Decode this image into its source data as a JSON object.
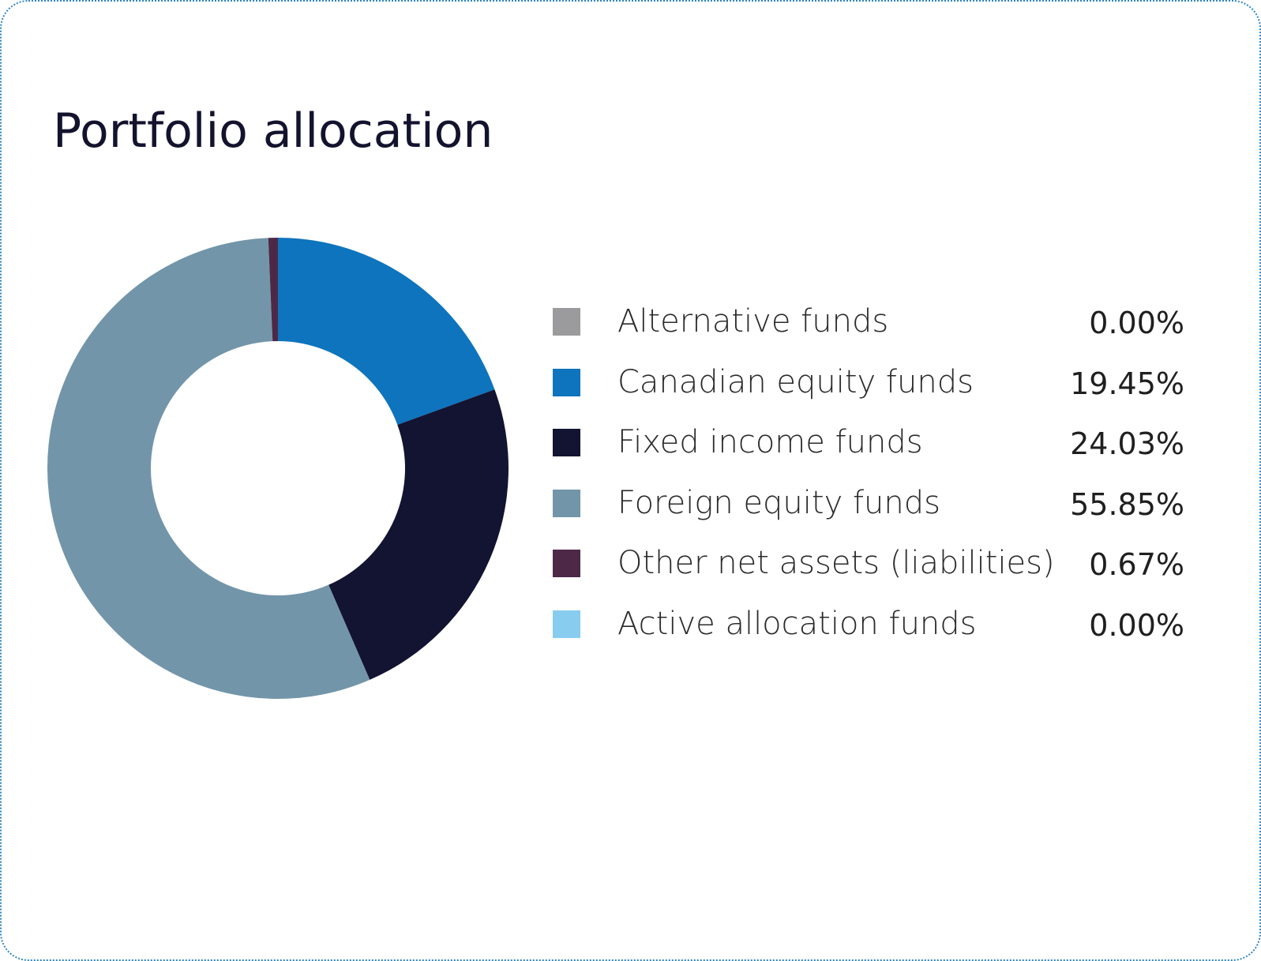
{
  "title": "Portfolio allocation",
  "chart_data": {
    "type": "pie",
    "variant": "donut",
    "title": "Portfolio allocation",
    "categories": [
      "Alternative funds",
      "Canadian equity funds",
      "Fixed income funds",
      "Foreign equity funds",
      "Other net assets (liabilities)",
      "Active allocation funds"
    ],
    "values": [
      0.0,
      19.45,
      24.03,
      55.85,
      0.67,
      0.0
    ],
    "value_labels": [
      "0.00%",
      "19.45%",
      "24.03%",
      "55.85%",
      "0.67%",
      "0.00%"
    ],
    "colors": [
      "#9b9b9d",
      "#0e74bd",
      "#131332",
      "#7295a9",
      "#4d2947",
      "#88cdf0"
    ],
    "unit": "%",
    "legend_position": "right"
  }
}
